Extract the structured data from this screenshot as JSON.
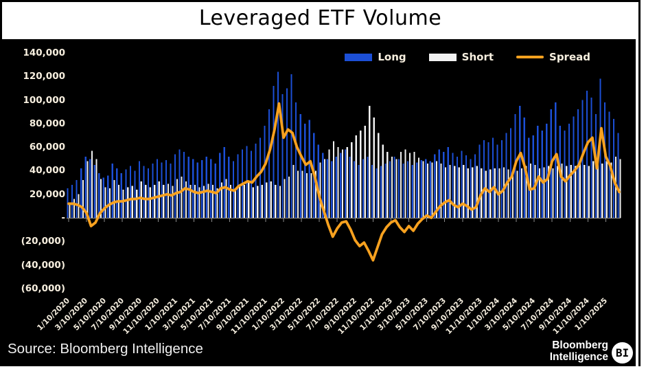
{
  "footer": {
    "source": "Source: Bloomberg Intelligence",
    "logo_line1": "Bloomberg",
    "logo_line2": "Intelligence",
    "logo_badge": "BI"
  },
  "colors": {
    "panel_background": "#000000",
    "page_background": "#ffffff",
    "long_blue": "#1c4fd6",
    "short_white": "#f2f2f2",
    "spread_orange": "#f7a11f",
    "axis_gray": "#8a8a8a",
    "label_cream": "#f7efdf",
    "title_black": "#000000"
  },
  "chart_data": {
    "type": "bar",
    "title": "Leveraged ETF Volume",
    "xlabel": "",
    "ylabel": "",
    "grid": false,
    "legend_position": "top-right",
    "ylim": [
      -60000,
      143000
    ],
    "y_ticks": {
      "labels": [
        "140,000",
        "120,000",
        "100,000",
        "80,000",
        "60,000",
        "40,000",
        "20,000",
        "-",
        "(20,000)",
        "(40,000)",
        "(60,000)"
      ],
      "values": [
        140000,
        120000,
        100000,
        80000,
        60000,
        40000,
        20000,
        0,
        -20000,
        -40000,
        -60000
      ]
    },
    "x_tick_labels": [
      "1/10/2020",
      "3/10/2020",
      "5/10/2020",
      "7/10/2020",
      "9/10/2020",
      "11/10/2020",
      "1/10/2021",
      "3/10/2021",
      "5/10/2021",
      "7/10/2021",
      "9/10/2021",
      "11/10/2021",
      "1/10/2022",
      "3/10/2022",
      "5/10/2022",
      "7/10/2022",
      "9/10/2022",
      "11/10/2022",
      "1/10/2023",
      "3/10/2023",
      "5/10/2023",
      "7/10/2023",
      "9/10/2023",
      "11/10/2023",
      "1/10/2024",
      "3/10/2024",
      "5/10/2024",
      "7/10/2024",
      "9/10/2024",
      "11/10/2024",
      "1/10/2025"
    ],
    "points_per_tick": 4,
    "series": [
      {
        "name": "Long",
        "type": "bar",
        "color": "#1c4fd6",
        "values": [
          25000,
          28000,
          32000,
          42000,
          52000,
          50000,
          45000,
          38000,
          34000,
          36000,
          46000,
          42000,
          38000,
          41000,
          44000,
          40000,
          48000,
          44000,
          42000,
          46000,
          50000,
          47000,
          49000,
          46000,
          54000,
          58000,
          56000,
          52000,
          50000,
          47000,
          49000,
          52000,
          50000,
          46000,
          55000,
          60000,
          52000,
          48000,
          54000,
          58000,
          61000,
          57000,
          63000,
          68000,
          78000,
          92000,
          112000,
          124000,
          105000,
          110000,
          122000,
          98000,
          88000,
          80000,
          83000,
          72000,
          62000,
          55000,
          50000,
          48000,
          52000,
          55000,
          58000,
          52000,
          48000,
          45000,
          50000,
          52000,
          45000,
          42000,
          44000,
          46000,
          48000,
          52000,
          50000,
          46000,
          48000,
          45000,
          47000,
          49000,
          50000,
          48000,
          54000,
          58000,
          56000,
          60000,
          55000,
          52000,
          57000,
          53000,
          50000,
          54000,
          62000,
          66000,
          64000,
          68000,
          62000,
          66000,
          72000,
          76000,
          88000,
          95000,
          85000,
          68000,
          70000,
          78000,
          74000,
          80000,
          92000,
          98000,
          78000,
          74000,
          80000,
          86000,
          92000,
          100000,
          108000,
          102000,
          88000,
          118000,
          98000,
          90000,
          84000,
          72000
        ]
      },
      {
        "name": "Short",
        "type": "bar",
        "color": "#f2f2f2",
        "values": [
          13000,
          16000,
          20000,
          32000,
          48000,
          57000,
          50000,
          33000,
          26000,
          25000,
          32000,
          28000,
          24000,
          26000,
          27000,
          24000,
          31000,
          28000,
          26000,
          28000,
          31000,
          28000,
          29000,
          27000,
          33000,
          35000,
          31000,
          28000,
          28000,
          26000,
          27000,
          29000,
          28000,
          25000,
          30000,
          33000,
          28000,
          25000,
          27000,
          28000,
          30000,
          26000,
          27000,
          28000,
          30000,
          31000,
          28000,
          27000,
          33000,
          35000,
          45000,
          40000,
          40000,
          38000,
          38000,
          40000,
          47000,
          50000,
          58000,
          65000,
          60000,
          58000,
          60000,
          64000,
          70000,
          74000,
          78000,
          95000,
          85000,
          72000,
          62000,
          56000,
          52000,
          50000,
          56000,
          58000,
          55000,
          56000,
          51000,
          48000,
          46000,
          47000,
          48000,
          46000,
          43000,
          45000,
          44000,
          43000,
          45000,
          42000,
          43000,
          44000,
          42000,
          40000,
          41000,
          42000,
          42000,
          43000,
          41000,
          40000,
          40000,
          42000,
          44000,
          46000,
          45000,
          42000,
          43000,
          44000,
          42000,
          44000,
          46000,
          44000,
          45000,
          44000,
          46000,
          45000,
          44000,
          48000,
          50000,
          46000,
          48000,
          47000,
          52000,
          50000
        ]
      },
      {
        "name": "Spread",
        "type": "line",
        "color": "#f7a11f",
        "values": [
          12000,
          12000,
          11000,
          9000,
          4000,
          -7000,
          -4000,
          4000,
          8000,
          11000,
          13000,
          14000,
          14000,
          15000,
          16000,
          16000,
          17000,
          16000,
          16000,
          17000,
          18000,
          19000,
          20000,
          19000,
          21000,
          22000,
          25000,
          24000,
          22000,
          21000,
          22000,
          23000,
          22000,
          21000,
          25000,
          26000,
          24000,
          23000,
          27000,
          29000,
          31000,
          30000,
          35000,
          39000,
          46000,
          58000,
          75000,
          97000,
          68000,
          75000,
          72000,
          60000,
          52000,
          45000,
          48000,
          35000,
          18000,
          6000,
          -6000,
          -16000,
          -9000,
          -4000,
          -3000,
          -10000,
          -19000,
          -24000,
          -21000,
          -28000,
          -36000,
          -25000,
          -14000,
          -8000,
          -4000,
          -2000,
          -8000,
          -12000,
          -7000,
          -11000,
          -5000,
          -1000,
          2000,
          0,
          5000,
          10000,
          13000,
          15000,
          11000,
          9000,
          12000,
          10000,
          7000,
          9000,
          19000,
          25000,
          22000,
          26000,
          20000,
          23000,
          30000,
          35000,
          48000,
          55000,
          42000,
          24000,
          25000,
          35000,
          30000,
          33000,
          48000,
          54000,
          35000,
          31000,
          36000,
          40000,
          45000,
          55000,
          64000,
          68000,
          42000,
          76000,
          52000,
          44000,
          30000,
          22000
        ]
      }
    ]
  }
}
